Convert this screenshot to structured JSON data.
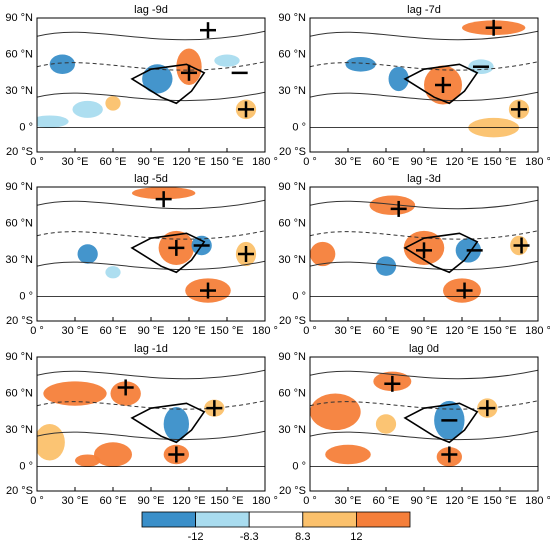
{
  "panels": [
    {
      "title": "lag -9d"
    },
    {
      "title": "lag -7d"
    },
    {
      "title": "lag -5d"
    },
    {
      "title": "lag -3d"
    },
    {
      "title": "lag -1d"
    },
    {
      "title": "lag 0d"
    }
  ],
  "lonlim": [
    0,
    180
  ],
  "latlim": [
    -20,
    90
  ],
  "lats": [
    {
      "value": 90,
      "label": "90 °N"
    },
    {
      "value": 60,
      "label": "60 °N"
    },
    {
      "value": 30,
      "label": "30 °N"
    },
    {
      "value": 0,
      "label": "0 °"
    },
    {
      "value": -20,
      "label": "20 °S"
    }
  ],
  "lons": [
    {
      "value": 0,
      "label": "0 °"
    },
    {
      "value": 30,
      "label": "30 °E"
    },
    {
      "value": 60,
      "label": "60 °E"
    },
    {
      "value": 90,
      "label": "90 °E"
    },
    {
      "value": 120,
      "label": "120 °E"
    },
    {
      "value": 150,
      "label": "150 °E"
    },
    {
      "value": 180,
      "label": "180 °"
    }
  ],
  "colorbar": {
    "labels": [
      "-12",
      "-8.3",
      "8.3",
      "12"
    ],
    "colors": [
      "#3a8fc9",
      "#a9dcef",
      "#ffffff",
      "#fbc16c",
      "#f57f3a"
    ]
  }
}
